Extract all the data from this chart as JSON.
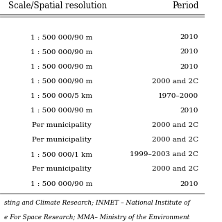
{
  "col1_header": "Scale/Spatial resolution",
  "col2_header": "Period",
  "rows": [
    [
      "1 : 500 000/90 m",
      "2010"
    ],
    [
      "1 : 500 000/90 m",
      "2010"
    ],
    [
      "1 : 500 000/90 m",
      "2010"
    ],
    [
      "1 : 500 000/90 m",
      "2000 and 2C"
    ],
    [
      "1 : 500 000/5 km",
      "1970–2000"
    ],
    [
      "1 : 500 000/90 m",
      "2010"
    ],
    [
      "Per municipality",
      "2000 and 2C"
    ],
    [
      "Per municipality",
      "2000 and 2C"
    ],
    [
      "1 : 500 000/1 km",
      "1999–2003 and 2C"
    ],
    [
      "Per municipality",
      "2000 and 2C"
    ],
    [
      "1 : 500 000/90 m",
      "2010"
    ]
  ],
  "footer_lines": [
    "sting and Climate Research; INMET – National Institute of",
    "e For Space Research; MMA– Ministry of the Environment"
  ],
  "bg_color": "#ffffff",
  "header_line_color": "#000000",
  "footer_line_color": "#000000",
  "text_color": "#000000",
  "font_size": 7.5,
  "header_font_size": 8.5,
  "footer_font_size": 6.5
}
